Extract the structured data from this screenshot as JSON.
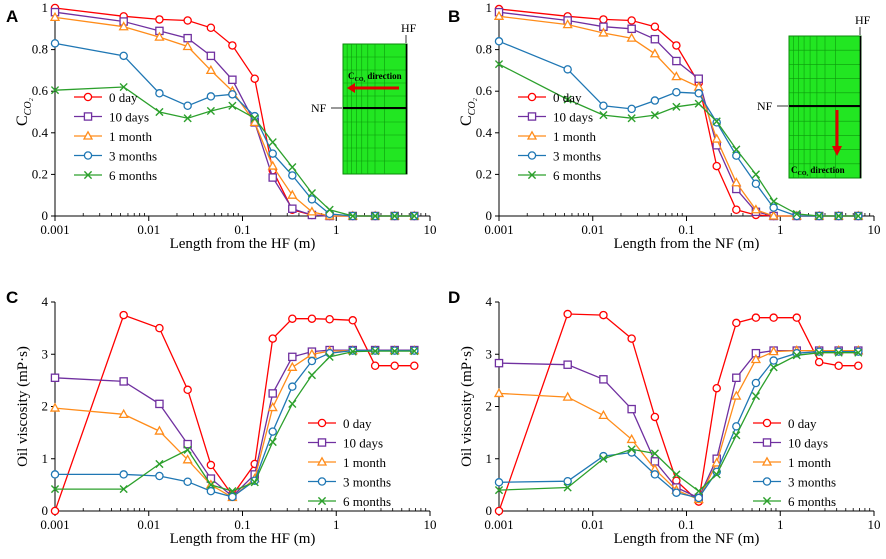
{
  "series_colors": [
    "#ff0000",
    "#7030a0",
    "#ff8c1a",
    "#1f77b4",
    "#2ca02c"
  ],
  "chart_data": [
    {
      "panel": "A",
      "type": "line",
      "xscale": "log",
      "xlim": [
        0.001,
        10
      ],
      "ylim": [
        0,
        1
      ],
      "yticks": [
        0,
        0.2,
        0.4,
        0.6,
        0.8,
        1
      ],
      "ytick_labels": [
        "0",
        "0.2",
        "0.4",
        "0.6",
        "0.8",
        "1"
      ],
      "xticks": [
        0.001,
        0.01,
        0.1,
        1,
        10
      ],
      "xtick_labels": [
        "0.001",
        "0.01",
        "0.1",
        "1",
        "10"
      ],
      "xlabel": "Length from the HF (m)",
      "ylabel_main": "C",
      "ylabel_sub": "CO₂",
      "x": [
        0.001,
        0.0054,
        0.013,
        0.026,
        0.046,
        0.078,
        0.135,
        0.21,
        0.34,
        0.55,
        0.85,
        1.5,
        2.6,
        4.2,
        6.8
      ],
      "series": [
        {
          "name": "0 day",
          "marker": "circle",
          "values": [
            1.0,
            0.96,
            0.945,
            0.94,
            0.905,
            0.82,
            0.66,
            0.22,
            0.03,
            0.005,
            0,
            0,
            0,
            0,
            0
          ]
        },
        {
          "name": "10 days",
          "marker": "square",
          "values": [
            0.98,
            0.935,
            0.89,
            0.855,
            0.77,
            0.655,
            0.45,
            0.185,
            0.035,
            0.005,
            0,
            0,
            0,
            0,
            0
          ]
        },
        {
          "name": "1 month",
          "marker": "triangle",
          "values": [
            0.955,
            0.91,
            0.86,
            0.815,
            0.7,
            0.6,
            0.45,
            0.24,
            0.1,
            0.02,
            0,
            0,
            0,
            0,
            0
          ]
        },
        {
          "name": "3 months",
          "marker": "circle",
          "values": [
            0.83,
            0.77,
            0.59,
            0.53,
            0.575,
            0.585,
            0.48,
            0.3,
            0.195,
            0.08,
            0.01,
            0,
            0,
            0,
            0
          ]
        },
        {
          "name": "6 months",
          "marker": "x",
          "values": [
            0.605,
            0.62,
            0.5,
            0.47,
            0.505,
            0.53,
            0.47,
            0.355,
            0.235,
            0.11,
            0.03,
            0,
            0,
            0,
            0
          ]
        }
      ],
      "inset": {
        "top_label": "HF",
        "side_label": "NF",
        "direction_label": "C",
        "direction_sub": "CO₂",
        "direction_word": "direction"
      }
    },
    {
      "panel": "B",
      "type": "line",
      "xscale": "log",
      "xlim": [
        0.001,
        10
      ],
      "ylim": [
        0,
        1
      ],
      "yticks": [
        0,
        0.2,
        0.4,
        0.6,
        0.8,
        1
      ],
      "ytick_labels": [
        "0",
        "0.2",
        "0.4",
        "0.6",
        "0.8",
        "1"
      ],
      "xticks": [
        0.001,
        0.01,
        0.1,
        1,
        10
      ],
      "xtick_labels": [
        "0.001",
        "0.01",
        "0.1",
        "1",
        "10"
      ],
      "xlabel": "Length from the NF (m)",
      "ylabel_main": "C",
      "ylabel_sub": "CO₂",
      "x": [
        0.001,
        0.0054,
        0.013,
        0.026,
        0.046,
        0.078,
        0.135,
        0.21,
        0.34,
        0.55,
        0.85,
        1.5,
        2.6,
        4.2,
        6.8
      ],
      "series": [
        {
          "name": "0 day",
          "marker": "circle",
          "values": [
            0.995,
            0.96,
            0.945,
            0.94,
            0.91,
            0.82,
            0.64,
            0.24,
            0.03,
            0.005,
            0,
            0,
            0,
            0,
            0
          ]
        },
        {
          "name": "10 days",
          "marker": "square",
          "values": [
            0.98,
            0.94,
            0.91,
            0.9,
            0.85,
            0.745,
            0.66,
            0.34,
            0.13,
            0.02,
            0,
            0,
            0,
            0,
            0
          ]
        },
        {
          "name": "1 month",
          "marker": "triangle",
          "values": [
            0.96,
            0.92,
            0.88,
            0.855,
            0.78,
            0.67,
            0.62,
            0.37,
            0.16,
            0.03,
            0,
            0,
            0,
            0,
            0
          ]
        },
        {
          "name": "3 months",
          "marker": "circle",
          "values": [
            0.84,
            0.705,
            0.53,
            0.515,
            0.555,
            0.595,
            0.59,
            0.45,
            0.29,
            0.155,
            0.04,
            0,
            0,
            0,
            0
          ]
        },
        {
          "name": "6 months",
          "marker": "x",
          "values": [
            0.73,
            0.56,
            0.485,
            0.47,
            0.485,
            0.525,
            0.54,
            0.455,
            0.32,
            0.2,
            0.07,
            0.01,
            0,
            0,
            0
          ]
        }
      ],
      "inset": {
        "top_label": "HF",
        "side_label": "NF",
        "direction_label": "C",
        "direction_sub": "CO₂",
        "direction_word": "direction"
      }
    },
    {
      "panel": "C",
      "type": "line",
      "xscale": "log",
      "xlim": [
        0.001,
        10
      ],
      "ylim": [
        0,
        4
      ],
      "yticks": [
        0,
        1,
        2,
        3,
        4
      ],
      "ytick_labels": [
        "0",
        "1",
        "2",
        "3",
        "4"
      ],
      "xticks": [
        0.001,
        0.01,
        0.1,
        1,
        10
      ],
      "xtick_labels": [
        "0.001",
        "0.01",
        "0.1",
        "1",
        "10"
      ],
      "xlabel": "Length from the HF (m)",
      "ylabel_main": "Oil viscosity (mP·s)",
      "x": [
        0.001,
        0.0054,
        0.013,
        0.026,
        0.046,
        0.078,
        0.135,
        0.21,
        0.34,
        0.55,
        0.85,
        1.5,
        2.6,
        4.2,
        6.8
      ],
      "series": [
        {
          "name": "0 day",
          "marker": "circle",
          "values": [
            0,
            3.75,
            3.5,
            2.32,
            0.88,
            0.3,
            0.9,
            3.3,
            3.68,
            3.68,
            3.67,
            3.65,
            2.78,
            2.78,
            2.78
          ]
        },
        {
          "name": "10 days",
          "marker": "square",
          "values": [
            2.55,
            2.48,
            2.05,
            1.28,
            0.62,
            0.28,
            0.7,
            2.25,
            2.95,
            3.05,
            3.08,
            3.08,
            3.08,
            3.08,
            3.08
          ]
        },
        {
          "name": "1 month",
          "marker": "triangle",
          "values": [
            1.97,
            1.85,
            1.53,
            0.98,
            0.5,
            0.26,
            0.62,
            1.98,
            2.75,
            3.0,
            3.06,
            3.07,
            3.07,
            3.07,
            3.07
          ]
        },
        {
          "name": "3 months",
          "marker": "circle",
          "values": [
            0.7,
            0.7,
            0.67,
            0.56,
            0.38,
            0.27,
            0.58,
            1.52,
            2.38,
            2.87,
            3.02,
            3.07,
            3.07,
            3.07,
            3.07
          ]
        },
        {
          "name": "6 months",
          "marker": "x",
          "values": [
            0.42,
            0.42,
            0.9,
            1.17,
            0.5,
            0.38,
            0.55,
            1.32,
            2.05,
            2.6,
            2.95,
            3.05,
            3.06,
            3.06,
            3.06
          ]
        }
      ]
    },
    {
      "panel": "D",
      "type": "line",
      "xscale": "log",
      "xlim": [
        0.001,
        10
      ],
      "ylim": [
        0,
        4
      ],
      "yticks": [
        0,
        1,
        2,
        3,
        4
      ],
      "ytick_labels": [
        "0",
        "1",
        "2",
        "3",
        "4"
      ],
      "xticks": [
        0.001,
        0.01,
        0.1,
        1,
        10
      ],
      "xtick_labels": [
        "0.001",
        "0.01",
        "0.1",
        "1",
        "10"
      ],
      "xlabel": "Length from the NF (m)",
      "ylabel_main": "Oil viscosity (mP·s)",
      "x": [
        0.001,
        0.0054,
        0.013,
        0.026,
        0.046,
        0.078,
        0.135,
        0.21,
        0.34,
        0.55,
        0.85,
        1.5,
        2.6,
        4.2,
        6.8
      ],
      "series": [
        {
          "name": "0 day",
          "marker": "circle",
          "values": [
            0,
            3.77,
            3.75,
            3.3,
            1.8,
            0.58,
            0.18,
            2.35,
            3.6,
            3.7,
            3.7,
            3.7,
            2.85,
            2.78,
            2.78
          ]
        },
        {
          "name": "10 days",
          "marker": "square",
          "values": [
            2.83,
            2.8,
            2.52,
            1.95,
            0.95,
            0.45,
            0.25,
            1.0,
            2.55,
            3.02,
            3.07,
            3.07,
            3.07,
            3.07,
            3.07
          ]
        },
        {
          "name": "1 month",
          "marker": "triangle",
          "values": [
            2.25,
            2.18,
            1.83,
            1.37,
            0.8,
            0.4,
            0.22,
            0.92,
            2.2,
            2.9,
            3.05,
            3.07,
            3.07,
            3.07,
            3.07
          ]
        },
        {
          "name": "3 months",
          "marker": "circle",
          "values": [
            0.55,
            0.57,
            1.05,
            1.12,
            0.7,
            0.35,
            0.25,
            0.75,
            1.62,
            2.45,
            2.88,
            3.02,
            3.05,
            3.05,
            3.05
          ]
        },
        {
          "name": "6 months",
          "marker": "x",
          "values": [
            0.4,
            0.45,
            1.0,
            1.18,
            1.1,
            0.7,
            0.38,
            0.7,
            1.45,
            2.2,
            2.75,
            2.98,
            3.03,
            3.03,
            3.03
          ]
        }
      ]
    }
  ]
}
